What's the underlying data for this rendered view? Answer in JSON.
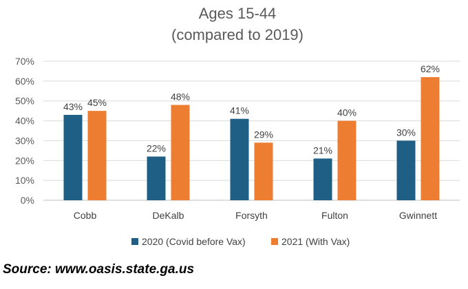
{
  "chart_data": {
    "type": "bar",
    "title": [
      "Ages 15-44",
      "(compared to 2019)"
    ],
    "categories": [
      "Cobb",
      "DeKalb",
      "Forsyth",
      "Fulton",
      "Gwinnett"
    ],
    "series": [
      {
        "name": "2020 (Covid before Vax)",
        "color": "#1f5f86",
        "values": [
          43,
          22,
          41,
          21,
          30
        ],
        "labels": [
          "43%",
          "22%",
          "41%",
          "21%",
          "30%"
        ]
      },
      {
        "name": "2021 (With Vax)",
        "color": "#ed7d31",
        "values": [
          45,
          48,
          29,
          40,
          62
        ],
        "labels": [
          "45%",
          "48%",
          "29%",
          "40%",
          "62%"
        ]
      }
    ],
    "ylim": [
      0,
      70
    ],
    "yticks": [
      "0%",
      "10%",
      "20%",
      "30%",
      "40%",
      "50%",
      "60%",
      "70%"
    ],
    "grid": true,
    "legend_position": "bottom",
    "xlabel": "",
    "ylabel": ""
  },
  "source": "Source: www.oasis.state.ga.us"
}
